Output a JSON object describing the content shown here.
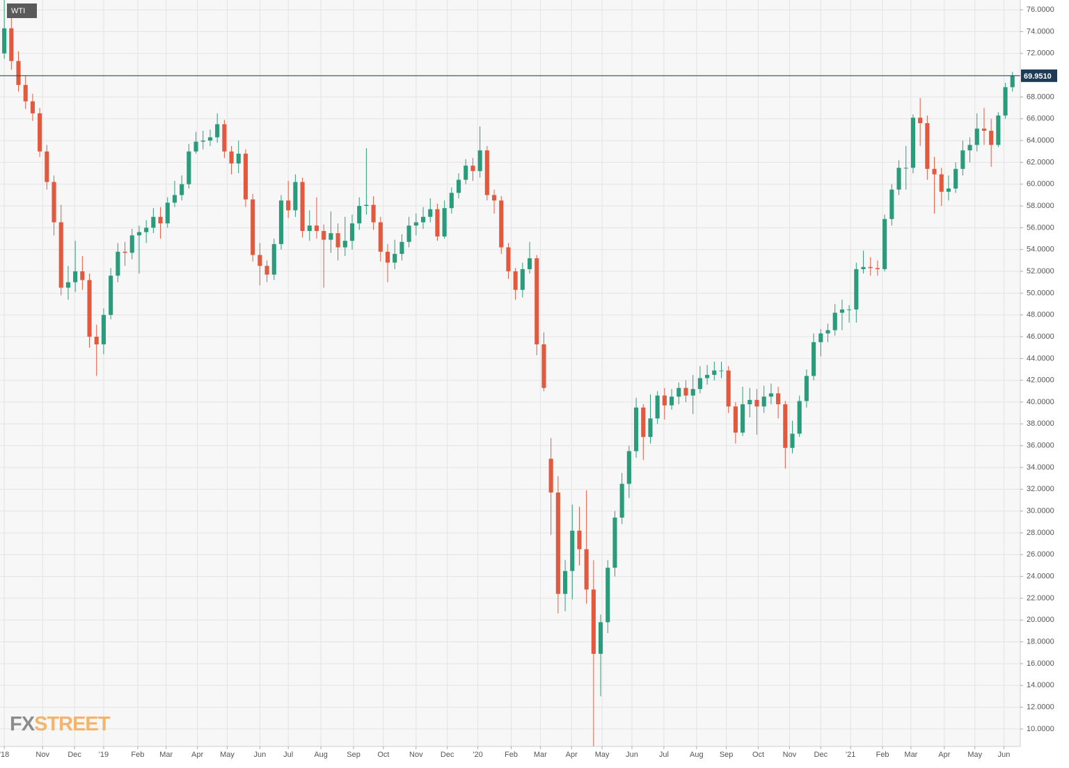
{
  "chart_data": {
    "type": "candlestick",
    "label": "WTI",
    "logo_fx": "FX",
    "logo_street": "STREET",
    "up_color": "#2b9c7b",
    "down_color": "#e05a40",
    "grid": true,
    "last_price": {
      "value": 69.951,
      "label": "69.9510"
    },
    "last_price_color": "#1d3a57",
    "open": [
      72,
      74.3,
      71.3,
      69.1,
      67.6,
      66.5,
      63,
      60.2,
      56.5,
      50.5,
      51,
      52,
      51.2,
      46,
      45.3,
      48,
      51.6,
      53.8,
      53.7,
      55.3,
      55.6,
      56,
      57,
      56.4,
      58.3,
      59,
      60,
      63,
      63.9,
      64,
      64.3,
      65.5,
      63,
      61.9,
      62.8,
      58.6,
      53.5,
      52.5,
      51.7,
      54.5,
      58.5,
      57.6,
      60.2,
      55.7,
      56.2,
      55.7,
      54.9,
      55.5,
      54.2,
      54.8,
      56.4,
      58,
      58.1,
      56.5,
      53.8,
      52.8,
      53.6,
      54.7,
      56.2,
      56.5,
      57,
      57.7,
      55.2,
      57.8,
      59.2,
      60.4,
      61.7,
      61.2,
      63.1,
      59,
      58.5,
      54.2,
      52,
      50.3,
      52.2,
      53.2,
      45.3,
      34.8,
      31.7,
      22.4,
      24.5,
      28.2,
      26.5,
      22.8,
      16.9,
      19.8,
      24.8,
      29.4,
      32.5,
      35.5,
      39.5,
      36.8,
      38.5,
      40.6,
      39.7,
      40.5,
      41.3,
      40.6,
      41.2,
      42.2,
      42.5,
      42.9,
      42.9,
      39.6,
      37.2,
      39.8,
      40.2,
      39.6,
      40.5,
      40.8,
      39.8,
      35.8,
      37.1,
      40.1,
      42.4,
      45.5,
      46.3,
      46.6,
      48.2,
      48.5,
      48.5,
      52.2,
      52.4,
      52.3,
      52.2,
      56.8,
      59.5,
      61.5,
      61.5,
      66.1,
      65.6,
      61.4,
      60.9,
      59.3,
      59.6,
      61.4,
      63.1,
      63.6,
      65.1,
      64.9,
      63.6,
      66.3,
      68.9
    ],
    "high": [
      76.9,
      75.9,
      72.2,
      70.0,
      68.3,
      67.0,
      63.6,
      60.8,
      58.1,
      52.5,
      54.8,
      53.4,
      51.8,
      47.1,
      48.6,
      52.3,
      54.6,
      54.7,
      55.9,
      56.2,
      56.7,
      57.8,
      57.9,
      58.8,
      60.3,
      60.8,
      63.7,
      64.8,
      64.9,
      65.0,
      66.5,
      65.9,
      63.5,
      64.0,
      63.2,
      59.1,
      54.6,
      53.0,
      55.0,
      59.0,
      60.3,
      60.9,
      60.6,
      57.6,
      58.8,
      56.3,
      57.5,
      56.4,
      57.0,
      57.2,
      58.8,
      63.3,
      58.9,
      57.0,
      54.5,
      54.9,
      55.4,
      57.0,
      57.3,
      57.9,
      58.7,
      58.2,
      58.5,
      59.7,
      61.0,
      62.3,
      62.4,
      65.3,
      63.5,
      59.5,
      58.9,
      54.6,
      52.3,
      52.8,
      54.7,
      53.5,
      46.4,
      36.7,
      33.2,
      25.5,
      30.6,
      30.4,
      31.9,
      25.5,
      20.5,
      25.5,
      30.0,
      33.5,
      36.0,
      40.4,
      39.8,
      40.7,
      41.0,
      41.3,
      41.2,
      41.8,
      42.0,
      42.5,
      43.3,
      43.4,
      43.7,
      43.7,
      43.3,
      40.0,
      41.4,
      41.3,
      41.2,
      41.5,
      41.7,
      41.4,
      40.1,
      38.3,
      40.6,
      43.0,
      46.3,
      46.7,
      47.2,
      49.0,
      49.4,
      48.9,
      52.8,
      53.9,
      53.3,
      53.0,
      57.2,
      60.0,
      62.2,
      63.5,
      66.4,
      67.9,
      66.3,
      62.5,
      61.5,
      60.8,
      62.0,
      64.0,
      64.3,
      66.5,
      67.0,
      66.0,
      66.6,
      69.3,
      70.3
    ],
    "low": [
      71.5,
      70.5,
      68.5,
      66.9,
      65.8,
      62.5,
      59.5,
      55.3,
      49.8,
      49.4,
      50.1,
      50.3,
      45.0,
      42.4,
      44.4,
      47.6,
      51.0,
      52.5,
      53.1,
      51.8,
      54.6,
      55.5,
      55.0,
      56.0,
      57.9,
      58.5,
      59.6,
      62.8,
      63.2,
      63.5,
      63.8,
      62.4,
      60.9,
      61.0,
      57.9,
      52.9,
      50.7,
      51.0,
      51.2,
      54.0,
      56.9,
      57.0,
      55.1,
      54.8,
      55.0,
      50.5,
      53.7,
      53.0,
      53.4,
      54.0,
      55.8,
      57.2,
      55.8,
      52.9,
      51.0,
      52.2,
      53.0,
      54.2,
      55.3,
      55.9,
      56.5,
      54.8,
      55.0,
      57.3,
      58.7,
      60.0,
      60.3,
      60.6,
      58.5,
      57.3,
      53.6,
      51.3,
      49.4,
      49.6,
      51.8,
      44.3,
      41.0,
      27.8,
      20.6,
      20.8,
      21.9,
      25.0,
      21.5,
      8.4,
      13.0,
      18.8,
      24.0,
      28.8,
      31.2,
      34.9,
      34.7,
      36.2,
      38.0,
      38.4,
      39.3,
      39.8,
      40.0,
      38.9,
      40.8,
      41.6,
      42.0,
      42.2,
      39.0,
      36.2,
      36.9,
      38.6,
      37.0,
      39.0,
      39.8,
      38.5,
      33.9,
      35.3,
      36.8,
      39.5,
      42.0,
      44.2,
      45.5,
      46.1,
      46.6,
      47.3,
      47.3,
      51.8,
      51.6,
      51.6,
      52.0,
      56.2,
      59.0,
      59.5,
      61.0,
      63.5,
      60.4,
      57.3,
      58.0,
      58.5,
      59.2,
      60.8,
      62.0,
      63.0,
      63.6,
      61.6,
      63.4,
      66.0,
      68.5
    ],
    "close": [
      74.3,
      71.3,
      69.1,
      67.6,
      66.5,
      63,
      60.2,
      56.5,
      50.5,
      51,
      52,
      51.2,
      46,
      45.3,
      48,
      51.6,
      53.8,
      53.7,
      55.3,
      55.6,
      56,
      57,
      56.4,
      58.3,
      59,
      60,
      63,
      63.9,
      64,
      64.3,
      65.5,
      63,
      61.9,
      62.8,
      58.6,
      53.5,
      52.5,
      51.7,
      54.5,
      58.5,
      57.6,
      60.2,
      55.7,
      56.2,
      55.7,
      54.9,
      55.5,
      54.2,
      54.8,
      56.4,
      58,
      58.1,
      56.5,
      53.8,
      52.8,
      53.6,
      54.7,
      56.2,
      56.5,
      57,
      57.7,
      55.2,
      57.8,
      59.2,
      60.4,
      61.7,
      61.2,
      63.1,
      59,
      58.5,
      54.2,
      52,
      50.3,
      52.2,
      53.2,
      45.3,
      41.3,
      31.7,
      22.4,
      24.5,
      28.2,
      26.5,
      22.8,
      16.9,
      19.8,
      24.8,
      29.4,
      32.5,
      35.5,
      39.5,
      36.8,
      38.5,
      40.6,
      39.7,
      40.5,
      41.3,
      40.6,
      41.2,
      42.2,
      42.5,
      42.9,
      42.9,
      39.6,
      37.2,
      39.8,
      40.2,
      39.6,
      40.5,
      40.8,
      39.8,
      35.8,
      37.1,
      40.1,
      42.4,
      45.5,
      46.3,
      46.6,
      48.2,
      48.5,
      48.5,
      52.2,
      52.4,
      52.3,
      52.2,
      56.8,
      59.5,
      61.5,
      61.5,
      66.1,
      65.6,
      61.4,
      60.9,
      59.3,
      59.6,
      61.4,
      63.1,
      63.6,
      65.1,
      64.9,
      63.6,
      66.3,
      68.9,
      69.95
    ],
    "xlim": [
      -0.6,
      143.1
    ],
    "xticks": [
      {
        "value": 0,
        "label": "'18"
      },
      {
        "value": 5.4,
        "label": "Nov"
      },
      {
        "value": 9.9,
        "label": "Dec"
      },
      {
        "value": 14.0,
        "label": "'19"
      },
      {
        "value": 18.8,
        "label": "Feb"
      },
      {
        "value": 22.8,
        "label": "Mar"
      },
      {
        "value": 27.2,
        "label": "Apr"
      },
      {
        "value": 31.4,
        "label": "May"
      },
      {
        "value": 36.0,
        "label": "Jun"
      },
      {
        "value": 40.0,
        "label": "Jul"
      },
      {
        "value": 44.6,
        "label": "Aug"
      },
      {
        "value": 49.2,
        "label": "Sep"
      },
      {
        "value": 53.4,
        "label": "Oct"
      },
      {
        "value": 58.0,
        "label": "Nov"
      },
      {
        "value": 62.4,
        "label": "Dec"
      },
      {
        "value": 66.7,
        "label": "'20"
      },
      {
        "value": 71.4,
        "label": "Feb"
      },
      {
        "value": 75.5,
        "label": "Mar"
      },
      {
        "value": 79.9,
        "label": "Apr"
      },
      {
        "value": 84.2,
        "label": "May"
      },
      {
        "value": 88.4,
        "label": "Jun"
      },
      {
        "value": 92.9,
        "label": "Jul"
      },
      {
        "value": 97.5,
        "label": "Aug"
      },
      {
        "value": 101.7,
        "label": "Sep"
      },
      {
        "value": 106.2,
        "label": "Oct"
      },
      {
        "value": 110.6,
        "label": "Nov"
      },
      {
        "value": 115.0,
        "label": "Dec"
      },
      {
        "value": 119.2,
        "label": "'21"
      },
      {
        "value": 123.7,
        "label": "Feb"
      },
      {
        "value": 127.7,
        "label": "Mar"
      },
      {
        "value": 132.4,
        "label": "Apr"
      },
      {
        "value": 136.7,
        "label": "May"
      },
      {
        "value": 140.8,
        "label": "Jun"
      }
    ],
    "ylim": [
      8.4,
      76.9
    ],
    "yticks": [
      {
        "value": 10,
        "label": "10.0000"
      },
      {
        "value": 12,
        "label": "12.0000"
      },
      {
        "value": 14,
        "label": "14.0000"
      },
      {
        "value": 16,
        "label": "16.0000"
      },
      {
        "value": 18,
        "label": "18.0000"
      },
      {
        "value": 20,
        "label": "20.0000"
      },
      {
        "value": 22,
        "label": "22.0000"
      },
      {
        "value": 24,
        "label": "24.0000"
      },
      {
        "value": 26,
        "label": "26.0000"
      },
      {
        "value": 28,
        "label": "28.0000"
      },
      {
        "value": 30,
        "label": "30.0000"
      },
      {
        "value": 32,
        "label": "32.0000"
      },
      {
        "value": 34,
        "label": "34.0000"
      },
      {
        "value": 36,
        "label": "36.0000"
      },
      {
        "value": 38,
        "label": "38.0000"
      },
      {
        "value": 40,
        "label": "40.0000"
      },
      {
        "value": 42,
        "label": "42.0000"
      },
      {
        "value": 44,
        "label": "44.0000"
      },
      {
        "value": 46,
        "label": "46.0000"
      },
      {
        "value": 48,
        "label": "48.0000"
      },
      {
        "value": 50,
        "label": "50.0000"
      },
      {
        "value": 52,
        "label": "52.0000"
      },
      {
        "value": 54,
        "label": "54.0000"
      },
      {
        "value": 56,
        "label": "56.0000"
      },
      {
        "value": 58,
        "label": "58.0000"
      },
      {
        "value": 60,
        "label": "60.0000"
      },
      {
        "value": 62,
        "label": "62.0000"
      },
      {
        "value": 64,
        "label": "64.0000"
      },
      {
        "value": 66,
        "label": "66.0000"
      },
      {
        "value": 68,
        "label": "68.0000"
      },
      {
        "value": 70,
        "label": "70.0000"
      },
      {
        "value": 72,
        "label": "72.0000"
      },
      {
        "value": 74,
        "label": "74.0000"
      },
      {
        "value": 76,
        "label": "76.0000"
      }
    ]
  }
}
